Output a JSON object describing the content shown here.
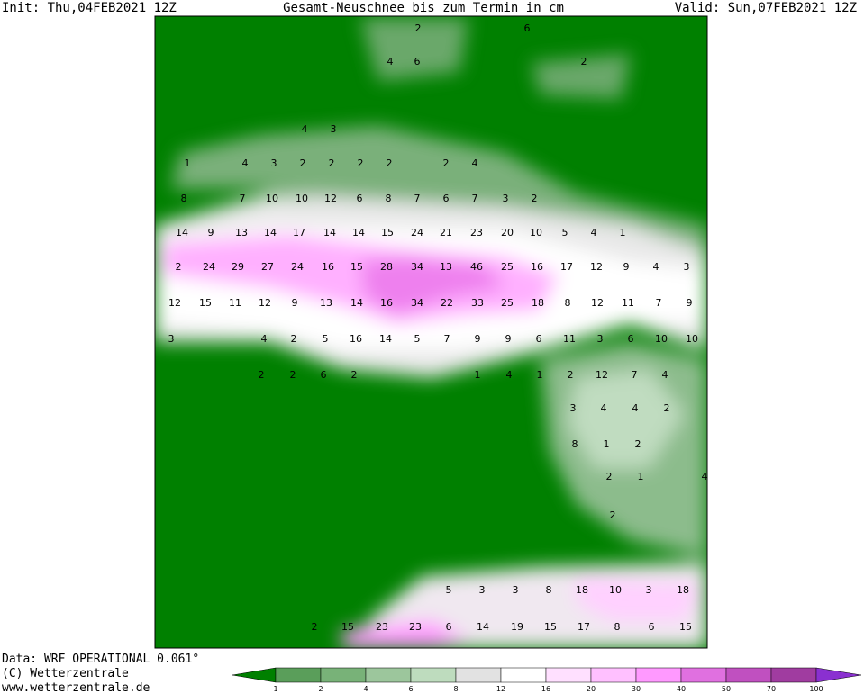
{
  "header": {
    "init": "Init: Thu,04FEB2021 12Z",
    "title": "Gesamt-Neuschnee bis zum Termin in cm",
    "valid": "Valid: Sun,07FEB2021 12Z"
  },
  "footer": {
    "data": "Data: WRF OPERATIONAL 0.061°",
    "copyright": "(C) Wetterzentrale",
    "url": "www.wetterzentrale.de"
  },
  "colorbar": {
    "labels": [
      "1",
      "2",
      "4",
      "6",
      "8",
      "12",
      "16",
      "20",
      "30",
      "40",
      "50",
      "70",
      "100"
    ],
    "colors": [
      "#008000",
      "#5a9e5a",
      "#78b278",
      "#9cc69c",
      "#bedcbe",
      "#e2e2e2",
      "#ffffff",
      "#ffe0ff",
      "#ffc0ff",
      "#ff99ff",
      "#e070e0",
      "#c050c0",
      "#a03ca0",
      "#8a30d0"
    ]
  },
  "map": {
    "labels": [
      [
        2,
        6
      ],
      [
        4,
        6,
        2
      ],
      [
        4,
        3
      ],
      [
        1,
        4,
        3,
        2,
        2,
        2,
        2,
        2,
        4
      ],
      [
        8,
        7,
        10,
        10,
        12,
        6,
        8,
        7,
        6,
        7,
        3,
        2
      ],
      [
        14,
        9,
        13,
        14,
        17,
        14,
        14,
        15,
        24,
        21,
        23,
        20,
        10,
        5,
        4,
        1
      ],
      [
        2,
        24,
        29,
        27,
        24,
        16,
        15,
        28,
        34,
        13,
        46,
        25,
        16,
        17,
        12,
        9,
        4,
        3
      ],
      [
        12,
        15,
        11,
        12,
        9,
        13,
        14,
        16,
        34,
        22,
        33,
        25,
        18,
        8,
        12,
        11,
        7,
        9
      ],
      [
        3,
        4,
        2,
        5,
        16,
        14,
        5,
        7,
        9,
        9,
        6,
        11,
        3,
        6,
        10,
        10
      ],
      [
        2,
        2,
        6,
        2,
        1,
        4,
        1,
        2,
        12,
        7,
        4
      ],
      [
        3,
        4,
        4,
        2
      ],
      [
        8,
        1,
        2
      ],
      [
        4,
        2,
        1
      ],
      [
        2
      ],
      [
        5,
        3,
        3,
        8,
        18,
        10,
        3,
        18
      ],
      [
        2,
        15,
        23,
        23,
        6,
        14,
        19,
        15,
        17,
        8,
        6,
        15
      ]
    ]
  }
}
